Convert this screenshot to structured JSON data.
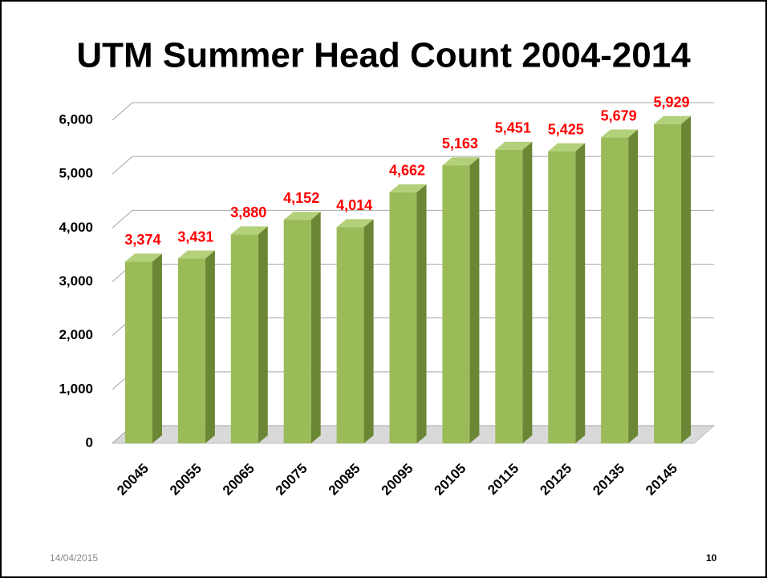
{
  "chart_data": {
    "type": "bar3d",
    "title": "UTM Summer Head Count 2004-2014",
    "categories": [
      "20045",
      "20055",
      "20065",
      "20075",
      "20085",
      "20095",
      "20105",
      "20115",
      "20125",
      "20135",
      "20145"
    ],
    "values": [
      3374,
      3431,
      3880,
      4152,
      4014,
      4662,
      5163,
      5451,
      5425,
      5679,
      5929
    ],
    "value_labels": [
      "3,374",
      "3,431",
      "3,880",
      "4,152",
      "4,014",
      "4,662",
      "5,163",
      "5,451",
      "5,425",
      "5,679",
      "5,929"
    ],
    "color": "#9bbb59",
    "label_color": "#ff0000",
    "ylim": [
      0,
      6000
    ],
    "yticks": [
      0,
      {
        "value": 1000,
        "label": "1,000"
      },
      {
        "value": 2000,
        "label": "2,000"
      },
      {
        "value": 3000,
        "label": "3,000"
      },
      {
        "value": 4000,
        "label": "4,000"
      },
      {
        "value": 5000,
        "label": "5,000"
      },
      {
        "value": 6000,
        "label": "6,000"
      }
    ],
    "grid": true
  },
  "footer": {
    "date": "14/04/2015",
    "page": "10"
  }
}
